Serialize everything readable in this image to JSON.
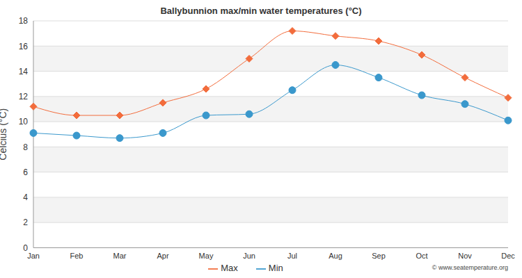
{
  "chart_data": {
    "type": "line",
    "title": "Ballybunnion max/min water temperatures (°C)",
    "ylabel": "Celcius (°C)",
    "categories": [
      "Jan",
      "Feb",
      "Mar",
      "Apr",
      "May",
      "Jun",
      "Jul",
      "Aug",
      "Sep",
      "Oct",
      "Nov",
      "Dec"
    ],
    "series": [
      {
        "name": "Max",
        "color": "#f26c3c",
        "marker": "diamond",
        "values": [
          11.2,
          10.5,
          10.5,
          11.5,
          12.6,
          15.0,
          17.2,
          16.8,
          16.4,
          15.3,
          13.5,
          11.9
        ]
      },
      {
        "name": "Min",
        "color": "#3a98cc",
        "marker": "circle",
        "values": [
          9.1,
          8.9,
          8.7,
          9.1,
          10.5,
          10.6,
          12.5,
          14.5,
          13.5,
          12.1,
          11.4,
          10.1
        ]
      }
    ],
    "ylim": [
      0,
      18
    ],
    "yticks": [
      0,
      2,
      4,
      6,
      8,
      10,
      12,
      14,
      16,
      18
    ],
    "grid": true,
    "legend": "bottom",
    "annotations": [
      "© www.seatemperature.org"
    ]
  }
}
